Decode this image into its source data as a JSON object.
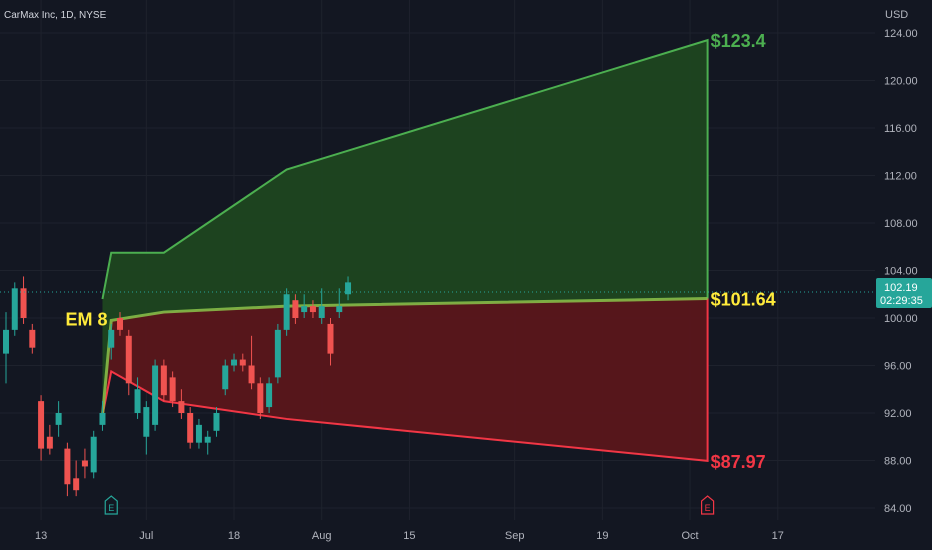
{
  "chart_data": {
    "type": "candlestick",
    "symbol_label": "CarMax Inc, 1D, NYSE",
    "currency": "USD",
    "y_axis": {
      "range": [
        83,
        125
      ],
      "ticks": [
        "124.00",
        "120.00",
        "116.00",
        "112.00",
        "108.00",
        "104.00",
        "100.00",
        "96.00",
        "92.00",
        "88.00",
        "84.00"
      ]
    },
    "x_axis": {
      "range": [
        0,
        103
      ],
      "ticks": [
        {
          "label": "13",
          "x": 4
        },
        {
          "label": "Jul",
          "x": 16
        },
        {
          "label": "18",
          "x": 26
        },
        {
          "label": "Aug",
          "x": 36
        },
        {
          "label": "15",
          "x": 46
        },
        {
          "label": "Sep",
          "x": 58
        },
        {
          "label": "19",
          "x": 68
        },
        {
          "label": "Oct",
          "x": 78
        },
        {
          "label": "17",
          "x": 88
        }
      ]
    },
    "last_price": {
      "value": "102.19",
      "countdown": "02:29:35",
      "level": 102.19
    },
    "candles": [
      [
        0,
        97,
        99,
        94.5,
        100.5
      ],
      [
        1,
        99,
        102.5,
        98.5,
        103.0
      ],
      [
        2,
        102.5,
        100.0,
        99.5,
        103.5
      ],
      [
        3,
        99,
        97.5,
        97.0,
        99.5
      ],
      [
        4,
        93,
        89,
        88.0,
        93.5
      ],
      [
        5,
        90,
        89,
        88.5,
        91.0
      ],
      [
        6,
        91,
        92,
        90.0,
        93.0
      ],
      [
        7,
        89,
        86,
        85.0,
        89.5
      ],
      [
        8,
        86.5,
        85.5,
        85.0,
        88.0
      ],
      [
        9,
        88,
        87.5,
        86.5,
        89.0
      ],
      [
        10,
        87,
        90,
        86.5,
        90.5
      ],
      [
        11,
        91,
        92,
        90.5,
        93.0
      ],
      [
        12,
        97.5,
        99,
        96.5,
        99.5
      ],
      [
        13,
        100,
        99,
        98.5,
        100.5
      ],
      [
        14,
        98.5,
        94.5,
        93.5,
        99.0
      ],
      [
        15,
        92,
        94,
        91.5,
        95.0
      ],
      [
        16,
        90,
        92.5,
        88.5,
        93.0
      ],
      [
        17,
        91,
        96,
        90.5,
        96.5
      ],
      [
        18,
        96,
        93.5,
        93.0,
        96.5
      ],
      [
        19,
        95,
        93.0,
        92.5,
        95.5
      ],
      [
        20,
        93,
        92,
        91.5,
        94.0
      ],
      [
        21,
        92,
        89.5,
        89.0,
        92.5
      ],
      [
        22,
        89.5,
        91,
        89.0,
        91.5
      ],
      [
        23,
        89.5,
        90,
        88.5,
        90.5
      ],
      [
        24,
        90.5,
        92,
        90.0,
        92.5
      ],
      [
        25,
        94,
        96,
        93.5,
        96.5
      ],
      [
        26,
        96,
        96.5,
        95.5,
        97.0
      ],
      [
        27,
        96.5,
        96,
        95.5,
        97.0
      ],
      [
        28,
        96,
        94.5,
        94.0,
        98.5
      ],
      [
        29,
        94.5,
        92.0,
        91.5,
        95.0
      ],
      [
        30,
        92.5,
        94.5,
        92.0,
        95.0
      ],
      [
        31,
        95,
        99,
        94.5,
        99.5
      ],
      [
        32,
        99,
        102,
        98.5,
        102.5
      ],
      [
        33,
        101.5,
        100,
        99.5,
        102.0
      ],
      [
        34,
        100.5,
        101,
        100.0,
        102.0
      ],
      [
        35,
        101,
        100.5,
        100.0,
        101.5
      ],
      [
        36,
        100,
        101,
        99.5,
        102.5
      ],
      [
        37,
        99.5,
        97,
        96.0,
        100.0
      ],
      [
        38,
        100.5,
        101,
        100.0,
        102.5
      ],
      [
        39,
        102,
        103,
        101.5,
        103.5
      ]
    ],
    "expected_move": {
      "label": "EM 8",
      "points": [
        {
          "x": 11,
          "upper": 101.6,
          "mid": 91.8,
          "lower": 91.8
        },
        {
          "x": 12,
          "upper": 105.5,
          "mid": 99.8,
          "lower": 95.5
        },
        {
          "x": 18,
          "upper": 105.5,
          "mid": 100.5,
          "lower": 93.0
        },
        {
          "x": 32,
          "upper": 112.5,
          "mid": 101.0,
          "lower": 91.5
        },
        {
          "x": 80,
          "upper": 123.4,
          "mid": 101.64,
          "lower": 87.97
        }
      ],
      "upper_label": "$123.4",
      "mid_label": "$101.64",
      "lower_label": "$87.97",
      "colors": {
        "upper_fill": "#1e4620",
        "upper_line": "#4caf50",
        "lower_fill": "#5a161b",
        "lower_line": "#f23645",
        "mid_line": "#8bc34a",
        "mid_label": "#ffeb3b"
      }
    },
    "earnings_markers": [
      {
        "x": 12,
        "label": "E",
        "color": "#26a69a"
      },
      {
        "x": 80,
        "label": "E",
        "color": "#f23645"
      }
    ],
    "colors": {
      "up": "#26a69a",
      "down": "#ef5350",
      "background": "#131722",
      "grid": "#1e222d"
    }
  }
}
